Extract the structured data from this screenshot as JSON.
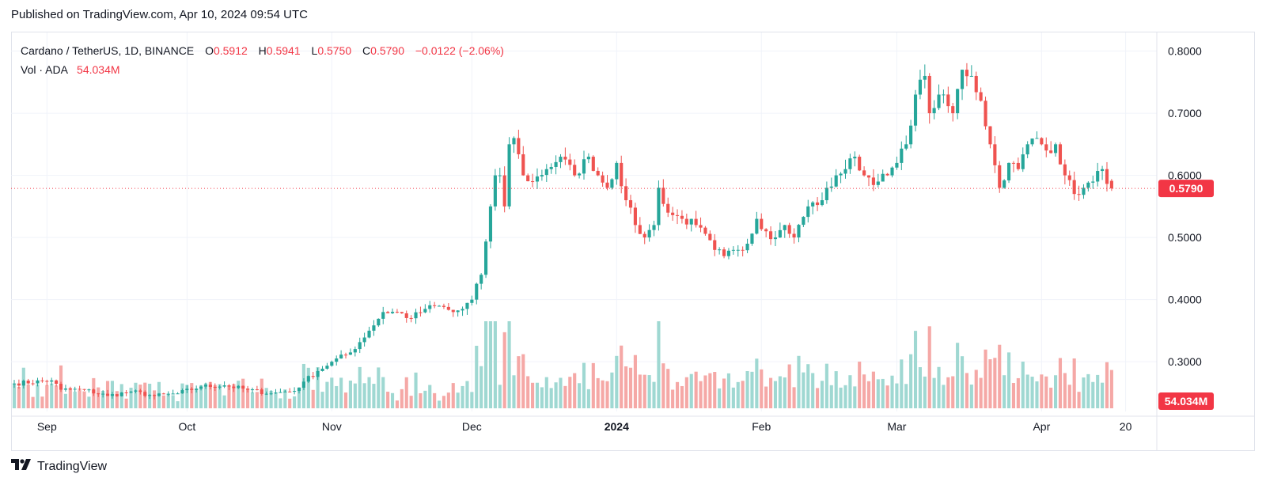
{
  "header": {
    "published": "Published on TradingView.com, Apr 10, 2024 09:54 UTC"
  },
  "legend": {
    "symbol": "Cardano / TetherUS, 1D, BINANCE",
    "o_label": "O",
    "o_value": "0.5912",
    "h_label": "H",
    "h_value": "0.5941",
    "l_label": "L",
    "l_value": "0.5750",
    "c_label": "C",
    "c_value": "0.5790",
    "change": "−0.0122 (−2.06%)",
    "vol_label": "Vol · ADA",
    "vol_value": "54.034M"
  },
  "footer": {
    "brand": "TradingView"
  },
  "colors": {
    "up": "#26a69a",
    "down": "#ef5350",
    "up_vol": "#9fd8d2",
    "down_vol": "#f5a8a6",
    "grid": "#f0f3fa",
    "price_line": "#f23645",
    "badge": "#f23645"
  },
  "chart_data": {
    "type": "candlestick",
    "title": "Cardano / TetherUS, 1D, BINANCE",
    "ylim": [
      0.22,
      0.83
    ],
    "y_ticks": [
      "0.8000",
      "0.7000",
      "0.6000",
      "0.5000",
      "0.4000",
      "0.3000"
    ],
    "y_tick_values": [
      0.8,
      0.7,
      0.6,
      0.5,
      0.4,
      0.3
    ],
    "x_labels": [
      {
        "label": "Sep",
        "day": 7
      },
      {
        "label": "Oct",
        "day": 37
      },
      {
        "label": "Nov",
        "day": 68
      },
      {
        "label": "Dec",
        "day": 98
      },
      {
        "label": "2024",
        "day": 129
      },
      {
        "label": "Feb",
        "day": 160
      },
      {
        "label": "Mar",
        "day": 189
      },
      {
        "label": "Apr",
        "day": 220
      },
      {
        "label": "20",
        "day": 238
      }
    ],
    "last_price_label": "0.5790",
    "last_price": 0.579,
    "volume_label": "54.034M",
    "close_anchors": [
      [
        0,
        0.265
      ],
      [
        8,
        0.27
      ],
      [
        10,
        0.255
      ],
      [
        15,
        0.255
      ],
      [
        20,
        0.245
      ],
      [
        25,
        0.252
      ],
      [
        30,
        0.245
      ],
      [
        35,
        0.249
      ],
      [
        40,
        0.26
      ],
      [
        45,
        0.262
      ],
      [
        50,
        0.255
      ],
      [
        55,
        0.249
      ],
      [
        58,
        0.252
      ],
      [
        60,
        0.253
      ],
      [
        62,
        0.268
      ],
      [
        65,
        0.285
      ],
      [
        68,
        0.3
      ],
      [
        72,
        0.315
      ],
      [
        76,
        0.35
      ],
      [
        79,
        0.38
      ],
      [
        82,
        0.38
      ],
      [
        85,
        0.37
      ],
      [
        88,
        0.385
      ],
      [
        91,
        0.39
      ],
      [
        94,
        0.38
      ],
      [
        96,
        0.385
      ],
      [
        98,
        0.4
      ],
      [
        100,
        0.44
      ],
      [
        102,
        0.55
      ],
      [
        103,
        0.6
      ],
      [
        104,
        0.6
      ],
      [
        105,
        0.55
      ],
      [
        106,
        0.65
      ],
      [
        107,
        0.66
      ],
      [
        109,
        0.6
      ],
      [
        111,
        0.59
      ],
      [
        114,
        0.61
      ],
      [
        117,
        0.63
      ],
      [
        120,
        0.6
      ],
      [
        123,
        0.63
      ],
      [
        125,
        0.6
      ],
      [
        127,
        0.58
      ],
      [
        129,
        0.62
      ],
      [
        131,
        0.56
      ],
      [
        133,
        0.52
      ],
      [
        135,
        0.5
      ],
      [
        137,
        0.52
      ],
      [
        138,
        0.58
      ],
      [
        140,
        0.54
      ],
      [
        143,
        0.53
      ],
      [
        146,
        0.52
      ],
      [
        150,
        0.48
      ],
      [
        152,
        0.47
      ],
      [
        154,
        0.48
      ],
      [
        157,
        0.49
      ],
      [
        159,
        0.53
      ],
      [
        161,
        0.51
      ],
      [
        163,
        0.5
      ],
      [
        165,
        0.52
      ],
      [
        167,
        0.5
      ],
      [
        170,
        0.55
      ],
      [
        173,
        0.56
      ],
      [
        176,
        0.6
      ],
      [
        178,
        0.61
      ],
      [
        180,
        0.63
      ],
      [
        182,
        0.6
      ],
      [
        185,
        0.59
      ],
      [
        187,
        0.6
      ],
      [
        189,
        0.62
      ],
      [
        191,
        0.65
      ],
      [
        193,
        0.73
      ],
      [
        195,
        0.76
      ],
      [
        196,
        0.7
      ],
      [
        198,
        0.73
      ],
      [
        201,
        0.7
      ],
      [
        203,
        0.77
      ],
      [
        205,
        0.76
      ],
      [
        207,
        0.72
      ],
      [
        209,
        0.65
      ],
      [
        211,
        0.58
      ],
      [
        213,
        0.62
      ],
      [
        215,
        0.61
      ],
      [
        217,
        0.65
      ],
      [
        219,
        0.66
      ],
      [
        221,
        0.64
      ],
      [
        223,
        0.65
      ],
      [
        225,
        0.6
      ],
      [
        227,
        0.57
      ],
      [
        229,
        0.58
      ],
      [
        231,
        0.59
      ],
      [
        233,
        0.61
      ],
      [
        235,
        0.579
      ]
    ]
  }
}
